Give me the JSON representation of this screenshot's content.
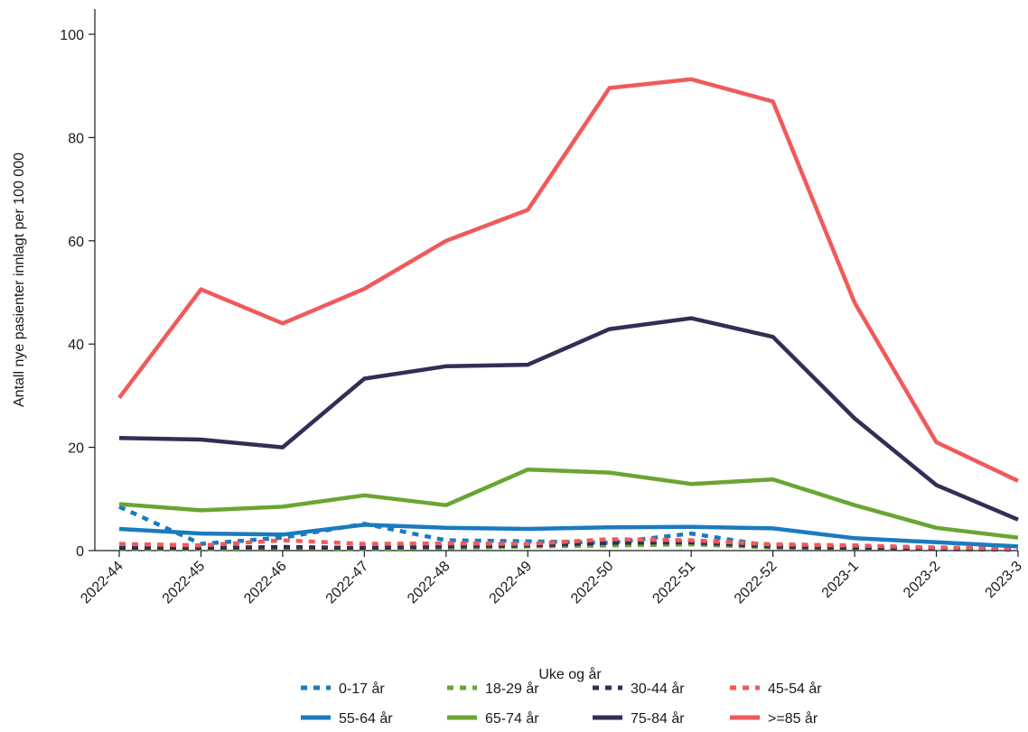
{
  "chart_data": {
    "type": "line",
    "title": "",
    "xlabel": "Uke og år",
    "ylabel": "Antall nye pasienter innlagt per 100 000",
    "categories": [
      "2022-44",
      "2022-45",
      "2022-46",
      "2022-47",
      "2022-48",
      "2022-49",
      "2022-50",
      "2022-51",
      "2022-52",
      "2023-1",
      "2023-2",
      "2023-3"
    ],
    "ylim": [
      0,
      100
    ],
    "yticks": [
      0,
      20,
      40,
      60,
      80,
      100
    ],
    "grid": false,
    "legend_position": "bottom",
    "series": [
      {
        "name": "0-17 år",
        "color": "#1a7bbf",
        "dash": "dotted",
        "values": [
          8.5,
          1.3,
          2.5,
          5.2,
          2.0,
          1.8,
          1.5,
          3.3,
          0.8,
          0.6,
          0.4,
          0.3
        ]
      },
      {
        "name": "18-29 år",
        "color": "#6aa533",
        "dash": "dotted",
        "values": [
          0.3,
          0.3,
          0.5,
          0.3,
          0.5,
          0.8,
          1.0,
          1.2,
          0.6,
          0.4,
          0.3,
          0.2
        ]
      },
      {
        "name": "30-44 år",
        "color": "#2f2f57",
        "dash": "dotted",
        "values": [
          0.5,
          0.5,
          0.7,
          0.5,
          0.8,
          1.0,
          1.5,
          1.6,
          0.8,
          0.5,
          0.3,
          0.2
        ]
      },
      {
        "name": "45-54 år",
        "color": "#f05a5a",
        "dash": "dotted",
        "values": [
          1.3,
          1.0,
          2.0,
          1.3,
          1.4,
          1.3,
          2.2,
          2.0,
          1.2,
          1.0,
          0.6,
          0.4
        ]
      },
      {
        "name": "55-64 år",
        "color": "#1a7bbf",
        "dash": "solid",
        "values": [
          4.2,
          3.3,
          3.1,
          5.0,
          4.4,
          4.2,
          4.5,
          4.6,
          4.3,
          2.4,
          1.6,
          0.8
        ]
      },
      {
        "name": "65-74 år",
        "color": "#6aa533",
        "dash": "solid",
        "values": [
          9.0,
          7.8,
          8.5,
          10.7,
          8.8,
          15.7,
          15.1,
          12.9,
          13.8,
          8.8,
          4.4,
          2.5
        ]
      },
      {
        "name": "75-84 år",
        "color": "#2f2f57",
        "dash": "solid",
        "values": [
          21.8,
          21.5,
          20.0,
          33.3,
          35.7,
          36.0,
          42.9,
          45.0,
          41.4,
          25.6,
          12.7,
          6.0
        ]
      },
      {
        "name": ">=85 år",
        "color": "#f05a5a",
        "dash": "solid",
        "values": [
          29.6,
          50.6,
          44.0,
          50.7,
          60.0,
          66.0,
          89.6,
          91.3,
          87.0,
          48.0,
          21.0,
          13.5
        ]
      }
    ]
  }
}
